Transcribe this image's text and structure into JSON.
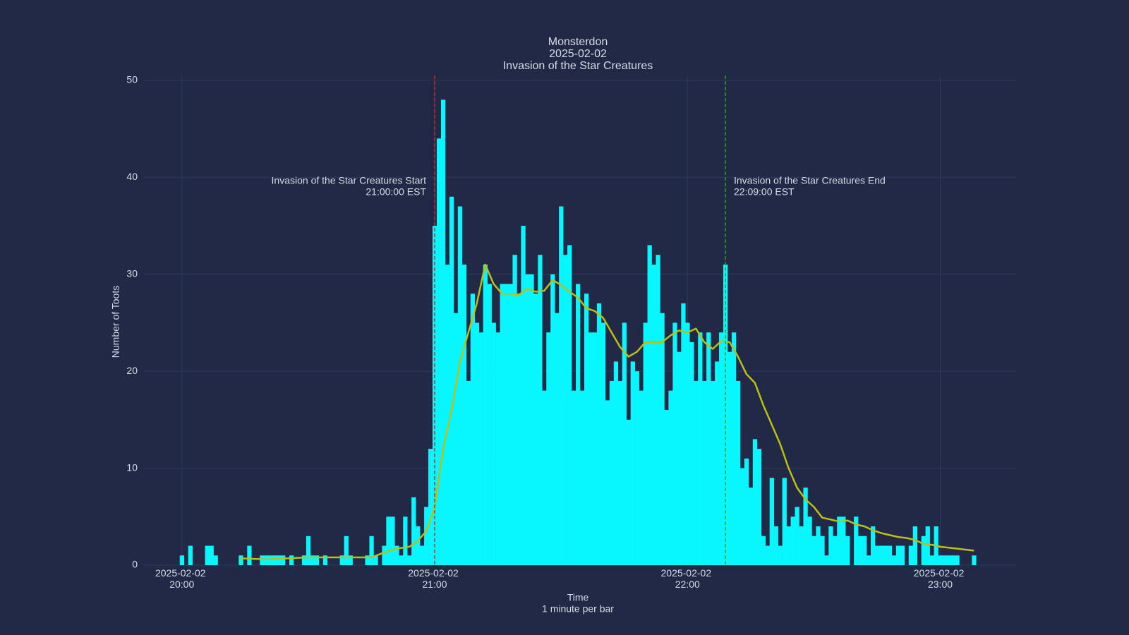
{
  "chart_data": {
    "type": "bar",
    "title": "Monsterdon",
    "subtitle": [
      "2025-02-02",
      "Invasion of the Star Creatures"
    ],
    "xlabel": "Time",
    "xlabel_note": "1 minute per bar",
    "ylabel": "Number of Toots",
    "xlim": [
      "19:51",
      "23:18"
    ],
    "ylim": [
      0,
      50.5
    ],
    "yticks": [
      0,
      10,
      20,
      30,
      40,
      50
    ],
    "xticks": [
      {
        "value": "20:00",
        "label": "2025-02-02 20:00"
      },
      {
        "value": "21:00",
        "label": "2025-02-02 21:00"
      },
      {
        "value": "22:00",
        "label": "2025-02-02 22:00"
      },
      {
        "value": "23:00",
        "label": "2025-02-02 23:00"
      }
    ],
    "grid": true,
    "x": [
      "20:00",
      "20:01",
      "20:02",
      "20:03",
      "20:04",
      "20:05",
      "20:06",
      "20:07",
      "20:08",
      "20:09",
      "20:10",
      "20:11",
      "20:12",
      "20:13",
      "20:14",
      "20:15",
      "20:16",
      "20:17",
      "20:18",
      "20:19",
      "20:20",
      "20:21",
      "20:22",
      "20:23",
      "20:24",
      "20:25",
      "20:26",
      "20:27",
      "20:28",
      "20:29",
      "20:30",
      "20:31",
      "20:32",
      "20:33",
      "20:34",
      "20:35",
      "20:36",
      "20:37",
      "20:38",
      "20:39",
      "20:40",
      "20:41",
      "20:42",
      "20:43",
      "20:44",
      "20:45",
      "20:46",
      "20:47",
      "20:48",
      "20:49",
      "20:50",
      "20:51",
      "20:52",
      "20:53",
      "20:54",
      "20:55",
      "20:56",
      "20:57",
      "20:58",
      "20:59",
      "21:00",
      "21:01",
      "21:02",
      "21:03",
      "21:04",
      "21:05",
      "21:06",
      "21:07",
      "21:08",
      "21:09",
      "21:10",
      "21:11",
      "21:12",
      "21:13",
      "21:14",
      "21:15",
      "21:16",
      "21:17",
      "21:18",
      "21:19",
      "21:20",
      "21:21",
      "21:22",
      "21:23",
      "21:24",
      "21:25",
      "21:26",
      "21:27",
      "21:28",
      "21:29",
      "21:30",
      "21:31",
      "21:32",
      "21:33",
      "21:34",
      "21:35",
      "21:36",
      "21:37",
      "21:38",
      "21:39",
      "21:40",
      "21:41",
      "21:42",
      "21:43",
      "21:44",
      "21:45",
      "21:46",
      "21:47",
      "21:48",
      "21:49",
      "21:50",
      "21:51",
      "21:52",
      "21:53",
      "21:54",
      "21:55",
      "21:56",
      "21:57",
      "21:58",
      "21:59",
      "22:00",
      "22:01",
      "22:02",
      "22:03",
      "22:04",
      "22:05",
      "22:06",
      "22:07",
      "22:08",
      "22:09",
      "22:10",
      "22:11",
      "22:12",
      "22:13",
      "22:14",
      "22:15",
      "22:16",
      "22:17",
      "22:18",
      "22:19",
      "22:20",
      "22:21",
      "22:22",
      "22:23",
      "22:24",
      "22:25",
      "22:26",
      "22:27",
      "22:28",
      "22:29",
      "22:30",
      "22:31",
      "22:32",
      "22:33",
      "22:34",
      "22:35",
      "22:36",
      "22:37",
      "22:38",
      "22:39",
      "22:40",
      "22:41",
      "22:42",
      "22:43",
      "22:44",
      "22:45",
      "22:46",
      "22:47",
      "22:48",
      "22:49",
      "22:50",
      "22:51",
      "22:52",
      "22:53",
      "22:54",
      "22:55",
      "22:56",
      "22:57",
      "22:58",
      "22:59",
      "23:00",
      "23:01",
      "23:02",
      "23:03",
      "23:04",
      "23:05",
      "23:06",
      "23:07",
      "23:08"
    ],
    "series": [
      {
        "color": "#08f7fe",
        "values": [
          1,
          0,
          2,
          0,
          0,
          0,
          2,
          2,
          1,
          0,
          0,
          0,
          0,
          0,
          1,
          0,
          2,
          0,
          0,
          1,
          1,
          1,
          1,
          1,
          1,
          0,
          1,
          0,
          0,
          1,
          3,
          1,
          1,
          0,
          1,
          0,
          0,
          0,
          1,
          3,
          1,
          0,
          0,
          0,
          1,
          3,
          1,
          0,
          2,
          5,
          5,
          2,
          1,
          5,
          1,
          7,
          4,
          2,
          6,
          12,
          35,
          44,
          48,
          31,
          38,
          26,
          37,
          31,
          19,
          28,
          25,
          24,
          31,
          29,
          25,
          24,
          29,
          29,
          29,
          32,
          28,
          35,
          30,
          30,
          28,
          32,
          18,
          24,
          30,
          26,
          37,
          32,
          33,
          18,
          29,
          18,
          28,
          24,
          24,
          27,
          25,
          17,
          19,
          21,
          19,
          25,
          15,
          21,
          20,
          18,
          25,
          33,
          31,
          32,
          26,
          16,
          18,
          25,
          22,
          27,
          25,
          23,
          19,
          24,
          19,
          24,
          19,
          21,
          24,
          31,
          22,
          24,
          19,
          10,
          11,
          8,
          13,
          12,
          3,
          2,
          9,
          4,
          2,
          9,
          4,
          5,
          6,
          4,
          8,
          5,
          3,
          4,
          3,
          1,
          4,
          3,
          5,
          5,
          3,
          0,
          5,
          3,
          3,
          1,
          4,
          2,
          2,
          2,
          2,
          1,
          2,
          2,
          0,
          2,
          4,
          0,
          3,
          4,
          1,
          4,
          1,
          1,
          1,
          1,
          1,
          0,
          0,
          0,
          1
        ]
      }
    ],
    "trend": {
      "type": "line",
      "color": "#bcbf14",
      "x": [
        "20:14",
        "20:20",
        "20:25",
        "20:30",
        "20:35",
        "20:40",
        "20:45",
        "20:48",
        "20:51",
        "20:54",
        "20:56",
        "20:58",
        "21:00",
        "21:02",
        "21:04",
        "21:06",
        "21:08",
        "21:10",
        "21:12",
        "21:14",
        "21:16",
        "21:18",
        "21:20",
        "21:22",
        "21:24",
        "21:26",
        "21:28",
        "21:30",
        "21:32",
        "21:34",
        "21:36",
        "21:38",
        "21:40",
        "21:42",
        "21:44",
        "21:46",
        "21:48",
        "21:50",
        "21:52",
        "21:54",
        "21:56",
        "21:58",
        "22:00",
        "22:02",
        "22:04",
        "22:06",
        "22:08",
        "22:10",
        "22:12",
        "22:14",
        "22:16",
        "22:18",
        "22:20",
        "22:22",
        "22:24",
        "22:26",
        "22:28",
        "22:30",
        "22:32",
        "22:34",
        "22:36",
        "22:38",
        "22:40",
        "22:42",
        "22:44",
        "22:46",
        "22:48",
        "22:50",
        "22:52",
        "22:54",
        "22:56",
        "22:58",
        "23:00",
        "23:02",
        "23:04",
        "23:06",
        "23:08"
      ],
      "values": [
        0.7,
        0.6,
        0.7,
        0.8,
        0.8,
        0.8,
        0.8,
        1.3,
        1.7,
        1.9,
        2.5,
        3.5,
        6,
        12,
        16,
        21,
        24,
        27,
        31,
        29,
        28,
        28,
        27.9,
        28.5,
        28.2,
        28.3,
        29.4,
        28.9,
        28.2,
        27.6,
        26.5,
        26.2,
        25.5,
        24,
        22.5,
        21.5,
        22,
        23,
        23,
        23,
        23.7,
        24.2,
        24,
        24.4,
        23,
        22.3,
        23.1,
        23,
        21.5,
        19.7,
        18.8,
        16.5,
        14.5,
        12.5,
        10,
        8,
        6.8,
        6,
        4.9,
        4.7,
        4.5,
        4.6,
        4.2,
        4,
        3.6,
        3.3,
        3.1,
        2.9,
        2.8,
        2.6,
        2.2,
        2.1,
        1.9,
        1.8,
        1.7,
        1.6,
        1.5
      ]
    },
    "annotations": [
      {
        "x": "21:00",
        "color": "#d62728",
        "side": "left",
        "lines": [
          "Invasion of the Star Creatures Start",
          "21:00:00 EST"
        ]
      },
      {
        "x": "22:09",
        "color": "#2ca02c",
        "side": "right",
        "lines": [
          "Invasion of the Star Creatures End",
          "22:09:00 EST"
        ]
      }
    ]
  }
}
